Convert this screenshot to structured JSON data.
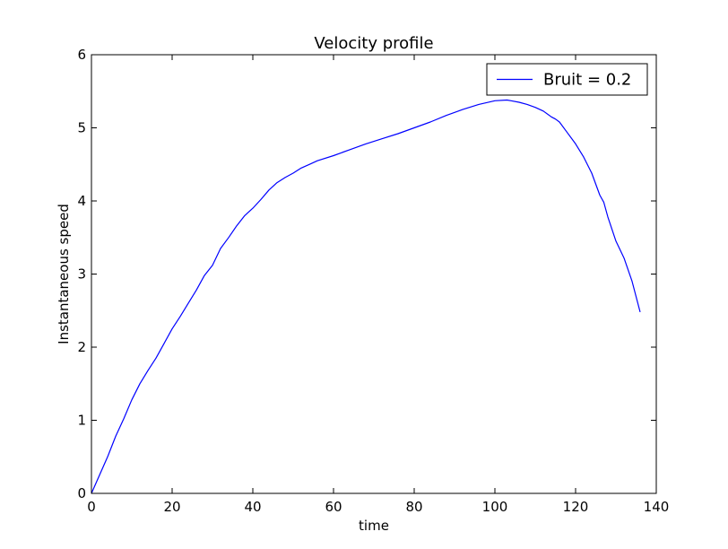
{
  "chart_data": {
    "type": "line",
    "title": "Velocity profile",
    "xlabel": "time",
    "ylabel": "Instantaneous speed",
    "xlim": [
      0,
      140
    ],
    "ylim": [
      0,
      6
    ],
    "xticks": [
      0,
      20,
      40,
      60,
      80,
      100,
      120,
      140
    ],
    "yticks": [
      0,
      1,
      2,
      3,
      4,
      5,
      6
    ],
    "grid": false,
    "legend_position": "top-right",
    "colors": {
      "series": "#0000ff",
      "axes": "#000000"
    },
    "series": [
      {
        "name": "Bruit = 0.2",
        "x": [
          0,
          2,
          4,
          6,
          8,
          10,
          12,
          14,
          16,
          18,
          20,
          22,
          24,
          26,
          28,
          30,
          32,
          34,
          36,
          38,
          40,
          42,
          44,
          46,
          48,
          50,
          52,
          54,
          56,
          60,
          64,
          68,
          72,
          76,
          80,
          84,
          88,
          92,
          96,
          100,
          103,
          104,
          106,
          108,
          110,
          112,
          114,
          115,
          116,
          118,
          120,
          122,
          124,
          126,
          127,
          128,
          130,
          132,
          134,
          136
        ],
        "y": [
          0,
          0.25,
          0.5,
          0.78,
          1.02,
          1.28,
          1.5,
          1.68,
          1.85,
          2.05,
          2.25,
          2.42,
          2.6,
          2.78,
          2.98,
          3.12,
          3.35,
          3.5,
          3.66,
          3.8,
          3.9,
          4.02,
          4.15,
          4.25,
          4.32,
          4.38,
          4.45,
          4.5,
          4.55,
          4.62,
          4.7,
          4.78,
          4.85,
          4.92,
          5.0,
          5.08,
          5.17,
          5.25,
          5.32,
          5.37,
          5.38,
          5.37,
          5.35,
          5.32,
          5.28,
          5.23,
          5.15,
          5.12,
          5.08,
          4.93,
          4.78,
          4.6,
          4.38,
          4.08,
          3.98,
          3.78,
          3.45,
          3.22,
          2.9,
          2.48
        ]
      }
    ]
  }
}
